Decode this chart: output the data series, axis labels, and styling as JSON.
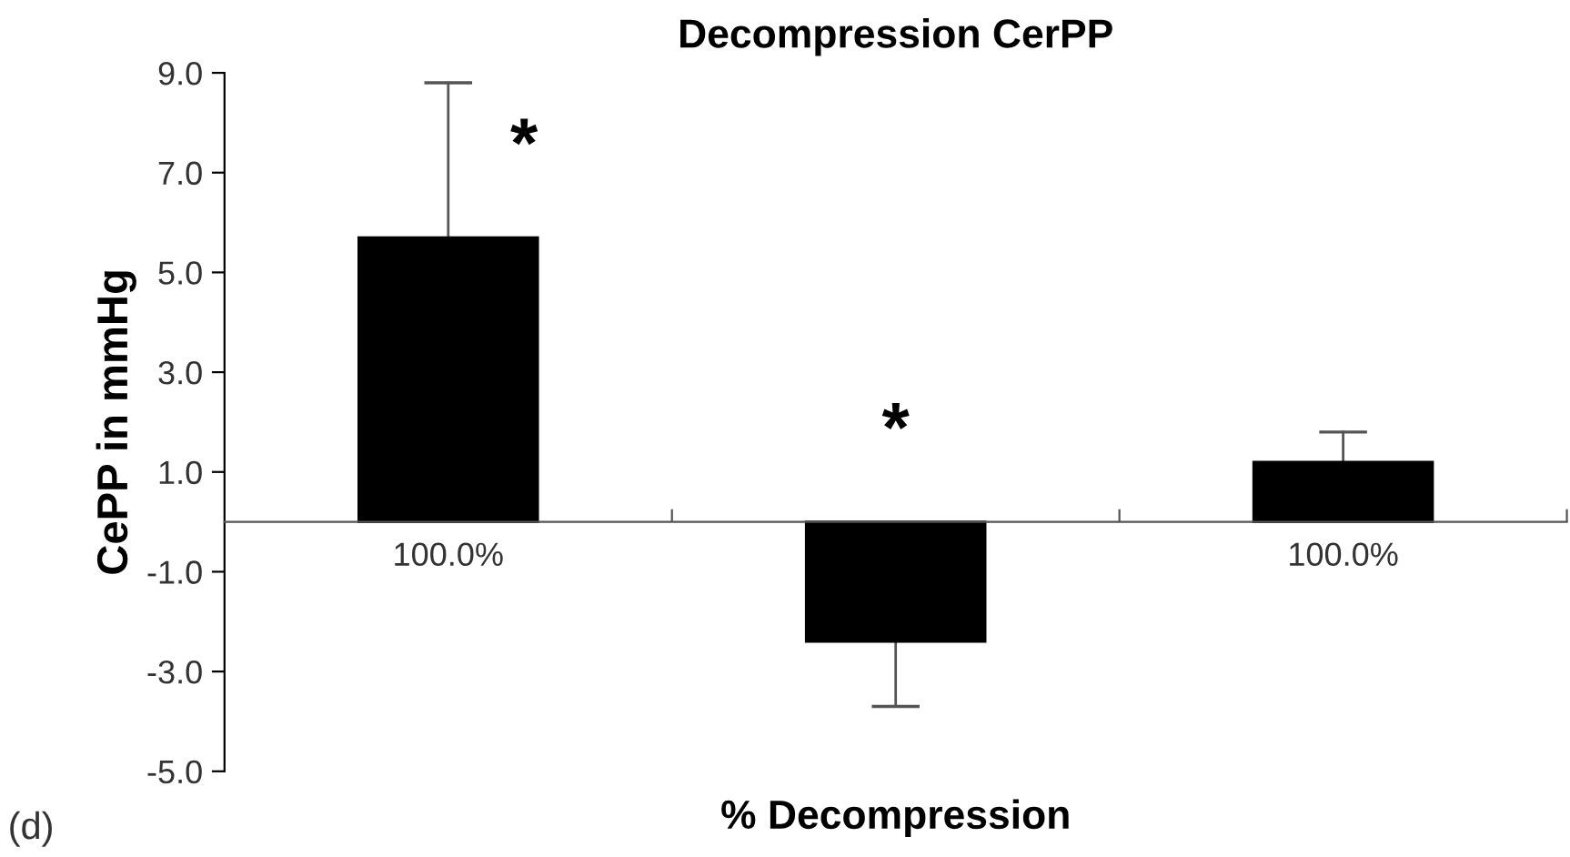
{
  "chart_data": {
    "type": "bar",
    "title": "Decompression CerPP",
    "xlabel": "% Decompression",
    "ylabel": "CePP in mmHg",
    "categories": [
      "100.0%",
      null,
      "100.0%"
    ],
    "values": [
      5.7,
      -2.4,
      1.2
    ],
    "errors": [
      [
        5.7,
        8.8
      ],
      [
        -3.7,
        -2.4
      ],
      [
        1.2,
        1.8
      ]
    ],
    "color": "#000000",
    "ylim": [
      -5,
      9
    ],
    "yticks": [
      {
        "value": -5,
        "label": "-5.0"
      },
      {
        "value": -3,
        "label": "-3.0"
      },
      {
        "value": -1,
        "label": "-1.0"
      },
      {
        "value": 1,
        "label": "1.0"
      },
      {
        "value": 3,
        "label": "3.0"
      },
      {
        "value": 5,
        "label": "5.0"
      },
      {
        "value": 7,
        "label": "7.0"
      },
      {
        "value": 9,
        "label": "9.0"
      }
    ],
    "annotations": [
      "*",
      "*",
      "(d)"
    ],
    "grid": false,
    "legend": false
  }
}
